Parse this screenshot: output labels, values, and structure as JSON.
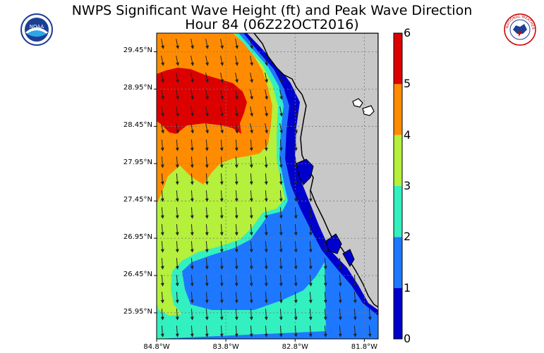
{
  "title": {
    "line1": "NWPS Significant Wave Height (ft) and Peak Wave Direction",
    "line2": "Hour 84 (06Z22OCT2016)"
  },
  "logos": [
    "noaa-logo",
    "national-weather-service-logo"
  ],
  "logo_text": {
    "noaa": "NOAA",
    "nws": "NATIONAL WEATHER SERVICE"
  },
  "map": {
    "lat_labels": [
      "29.45°N",
      "28.95°N",
      "28.45°N",
      "27.95°N",
      "27.45°N",
      "26.95°N",
      "26.45°N",
      "25.95°N"
    ],
    "lon_labels": [
      "84.8°W",
      "83.8°W",
      "82.8°W",
      "81.8°W"
    ],
    "lat_values": [
      29.45,
      28.95,
      28.45,
      27.95,
      27.45,
      26.95,
      26.45,
      25.95
    ],
    "lon_values": [
      -84.8,
      -83.8,
      -82.8,
      -81.8
    ],
    "lat_range": [
      25.6,
      29.7
    ],
    "lon_range": [
      -84.8,
      -81.6
    ],
    "grid": true,
    "arrow_direction": "southeast"
  },
  "colorbar": {
    "ticks": [
      "0",
      "1",
      "2",
      "3",
      "4",
      "5",
      "6"
    ],
    "range": [
      0,
      6
    ],
    "colors": [
      "#0000cc",
      "#1e78ff",
      "#33f0c0",
      "#b4f03c",
      "#ff8c00",
      "#dd0000"
    ]
  },
  "colors": {
    "land": "#c8c8c8",
    "band_0_1": "#0000cc",
    "band_1_2": "#1e78ff",
    "band_2_3": "#33f0c0",
    "band_3_4": "#b4f03c",
    "band_4_5": "#ff8c00",
    "band_5_6": "#dd0000"
  }
}
